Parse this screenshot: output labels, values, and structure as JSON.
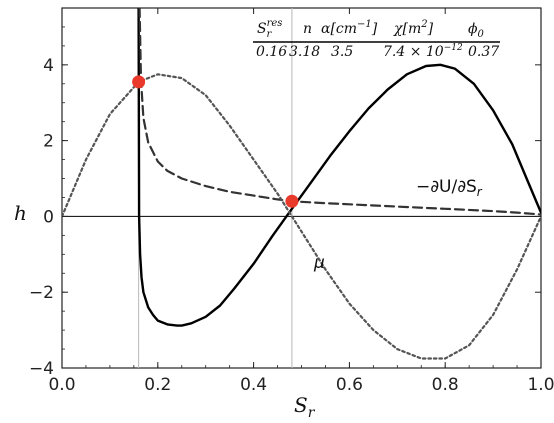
{
  "chart_data": {
    "type": "line",
    "xlim": [
      0.0,
      1.0
    ],
    "ylim": [
      -4,
      5.5
    ],
    "xlabel": "S",
    "xlabel_sub": "r",
    "ylabel": "h",
    "x_ticks": [
      0.0,
      0.2,
      0.4,
      0.6,
      0.8,
      1.0
    ],
    "x_tick_labels": [
      "0.0",
      "0.2",
      "0.4",
      "0.6",
      "0.8",
      "1.0"
    ],
    "y_ticks": [
      -4,
      -2,
      0,
      2,
      4
    ],
    "y_tick_labels": [
      "−4",
      "−2",
      "0",
      "2",
      "4"
    ],
    "grid": false,
    "vertical_lines": [
      0.16,
      0.48
    ],
    "series": [
      {
        "style": "solid",
        "color": "#000000",
        "x": [
          0.16,
          0.161,
          0.163,
          0.166,
          0.17,
          0.18,
          0.19,
          0.2,
          0.22,
          0.24,
          0.25,
          0.27,
          0.3,
          0.33,
          0.36,
          0.4,
          0.44,
          0.48,
          0.52,
          0.56,
          0.6,
          0.64,
          0.68,
          0.72,
          0.76,
          0.79,
          0.82,
          0.86,
          0.9,
          0.94,
          0.97,
          1.0
        ],
        "y": [
          5.5,
          0.0,
          -1.0,
          -1.6,
          -2.0,
          -2.4,
          -2.6,
          -2.75,
          -2.85,
          -2.88,
          -2.88,
          -2.82,
          -2.65,
          -2.35,
          -1.9,
          -1.25,
          -0.5,
          0.2,
          0.9,
          1.6,
          2.25,
          2.85,
          3.35,
          3.75,
          3.97,
          4.0,
          3.9,
          3.5,
          2.8,
          1.9,
          1.0,
          0.1
        ]
      },
      {
        "style": "dashed",
        "color": "#333333",
        "annotation": "−∂U/∂S",
        "annotation_sub": "r",
        "x": [
          0.162,
          0.165,
          0.17,
          0.18,
          0.2,
          0.22,
          0.25,
          0.3,
          0.35,
          0.4,
          0.45,
          0.48,
          0.55,
          0.6,
          0.7,
          0.8,
          0.9,
          0.95,
          1.0
        ],
        "y": [
          5.5,
          3.6,
          2.6,
          1.95,
          1.45,
          1.2,
          1.0,
          0.8,
          0.65,
          0.55,
          0.45,
          0.4,
          0.35,
          0.32,
          0.26,
          0.2,
          0.14,
          0.1,
          0.05
        ]
      },
      {
        "style": "dotted",
        "color": "#555555",
        "annotation": "μ",
        "x": [
          0.0,
          0.05,
          0.1,
          0.16,
          0.2,
          0.25,
          0.3,
          0.35,
          0.4,
          0.45,
          0.48,
          0.55,
          0.6,
          0.65,
          0.7,
          0.75,
          0.8,
          0.85,
          0.9,
          0.95,
          1.0
        ],
        "y": [
          0.0,
          1.5,
          2.7,
          3.55,
          3.75,
          3.65,
          3.2,
          2.4,
          1.5,
          0.6,
          0.0,
          -1.4,
          -2.3,
          -3.0,
          -3.5,
          -3.75,
          -3.75,
          -3.4,
          -2.6,
          -1.4,
          0.0
        ]
      }
    ],
    "highlight_points": [
      {
        "x": 0.16,
        "y": 3.55,
        "color": "#e8392b"
      },
      {
        "x": 0.48,
        "y": 0.4,
        "color": "#e8392b"
      }
    ],
    "parameter_table": {
      "headers": [
        "S",
        "n",
        "α[cm",
        "χ[m",
        "ϕ"
      ],
      "header_parts": {
        "sr_sup": "res",
        "sr_sub": "r",
        "alpha_sup": "−1",
        "alpha_close": "]",
        "chi_sup": "2",
        "chi_close": "]",
        "phi_sub": "0"
      },
      "values": [
        "0.16",
        "3.18",
        "3.5",
        "7.4 × 10",
        "0.37"
      ],
      "chi_exp": "−12"
    }
  }
}
